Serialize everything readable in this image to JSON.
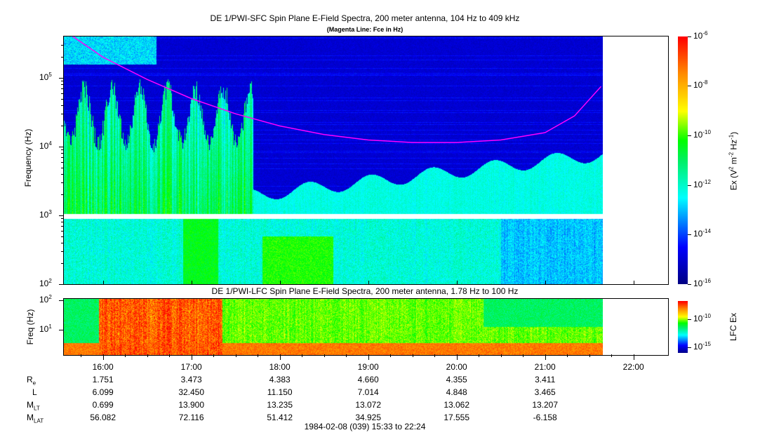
{
  "chart_data": [
    {
      "type": "heatmap",
      "title": "DE 1/PWI-SFC  Spin Plane E-Field Spectra, 200 meter antenna, 104 Hz to 409 kHz",
      "subtitle": "(Magenta Line: Fce in Hz)",
      "ylabel": "Frequency (Hz)",
      "yscale": "log",
      "ylim": [
        100,
        409000
      ],
      "yticks": [
        "10^2",
        "10^3",
        "10^4",
        "10^5"
      ],
      "xlim": [
        "15:33",
        "22:24"
      ],
      "data_end": "21:39",
      "colorbar": {
        "label": "Ex (V^2 m^-2 Hz^-1)",
        "scale": "log",
        "range": [
          1e-16,
          1e-06
        ],
        "ticks": [
          "10^-6",
          "10^-8",
          "10^-10",
          "10^-12",
          "10^-14",
          "10^-16"
        ],
        "colormap": "jet"
      },
      "fce_line": {
        "color": "#ff00ff",
        "times": [
          "15:39",
          "16:00",
          "16:30",
          "17:00",
          "17:30",
          "18:00",
          "18:30",
          "19:00",
          "19:30",
          "20:00",
          "20:30",
          "21:00",
          "21:20",
          "21:38"
        ],
        "values_hz": [
          409000,
          200000,
          95000,
          50000,
          30000,
          20000,
          15000,
          12500,
          11500,
          11500,
          12500,
          16000,
          28000,
          75000
        ]
      }
    },
    {
      "type": "heatmap",
      "title": "DE 1/PWI-LFC  Spin Plane E-Field Spectra, 200 meter antenna, 1.78 Hz to 100 Hz",
      "ylabel": "Freq (Hz)",
      "yscale": "log",
      "ylim": [
        1.78,
        100
      ],
      "yticks": [
        "10^1",
        "10^2"
      ],
      "colorbar": {
        "label": "LFC Ex",
        "scale": "log",
        "ticks": [
          "10^-10",
          "10^-15"
        ],
        "colormap": "jet"
      }
    }
  ],
  "labels": {
    "title1": "DE 1/PWI-SFC  Spin Plane E-Field Spectra, 200 meter antenna, 104 Hz to 409 kHz",
    "subtitle1": "(Magenta Line: Fce in Hz)",
    "ylabel1": "Frequency (Hz)",
    "cb1": "Ex (V",
    "title2": "DE 1/PWI-LFC  Spin Plane E-Field Spectra, 200 meter antenna, 1.78 Hz to 100 Hz",
    "ylabel2": "Freq (Hz)",
    "cb2": "LFC Ex"
  },
  "xticks": [
    "16:00",
    "17:00",
    "18:00",
    "19:00",
    "20:00",
    "21:00",
    "22:00"
  ],
  "ephemeris": [
    {
      "name": "R",
      "sub": "e",
      "values": [
        "1.751",
        "3.473",
        "4.383",
        "4.660",
        "4.355",
        "3.411"
      ]
    },
    {
      "name": "L",
      "sub": "",
      "values": [
        "6.099",
        "32.450",
        "11.150",
        "7.014",
        "4.848",
        "3.465"
      ]
    },
    {
      "name": "M",
      "sub": "LT",
      "values": [
        "0.699",
        "13.900",
        "13.235",
        "13.072",
        "13.062",
        "13.207"
      ]
    },
    {
      "name": "M",
      "sub": "LAT",
      "values": [
        "56.082",
        "72.116",
        "51.412",
        "34.925",
        "17.555",
        "-6.158"
      ]
    }
  ],
  "footer": "1984-02-08 (039) 15:33 to 22:24"
}
